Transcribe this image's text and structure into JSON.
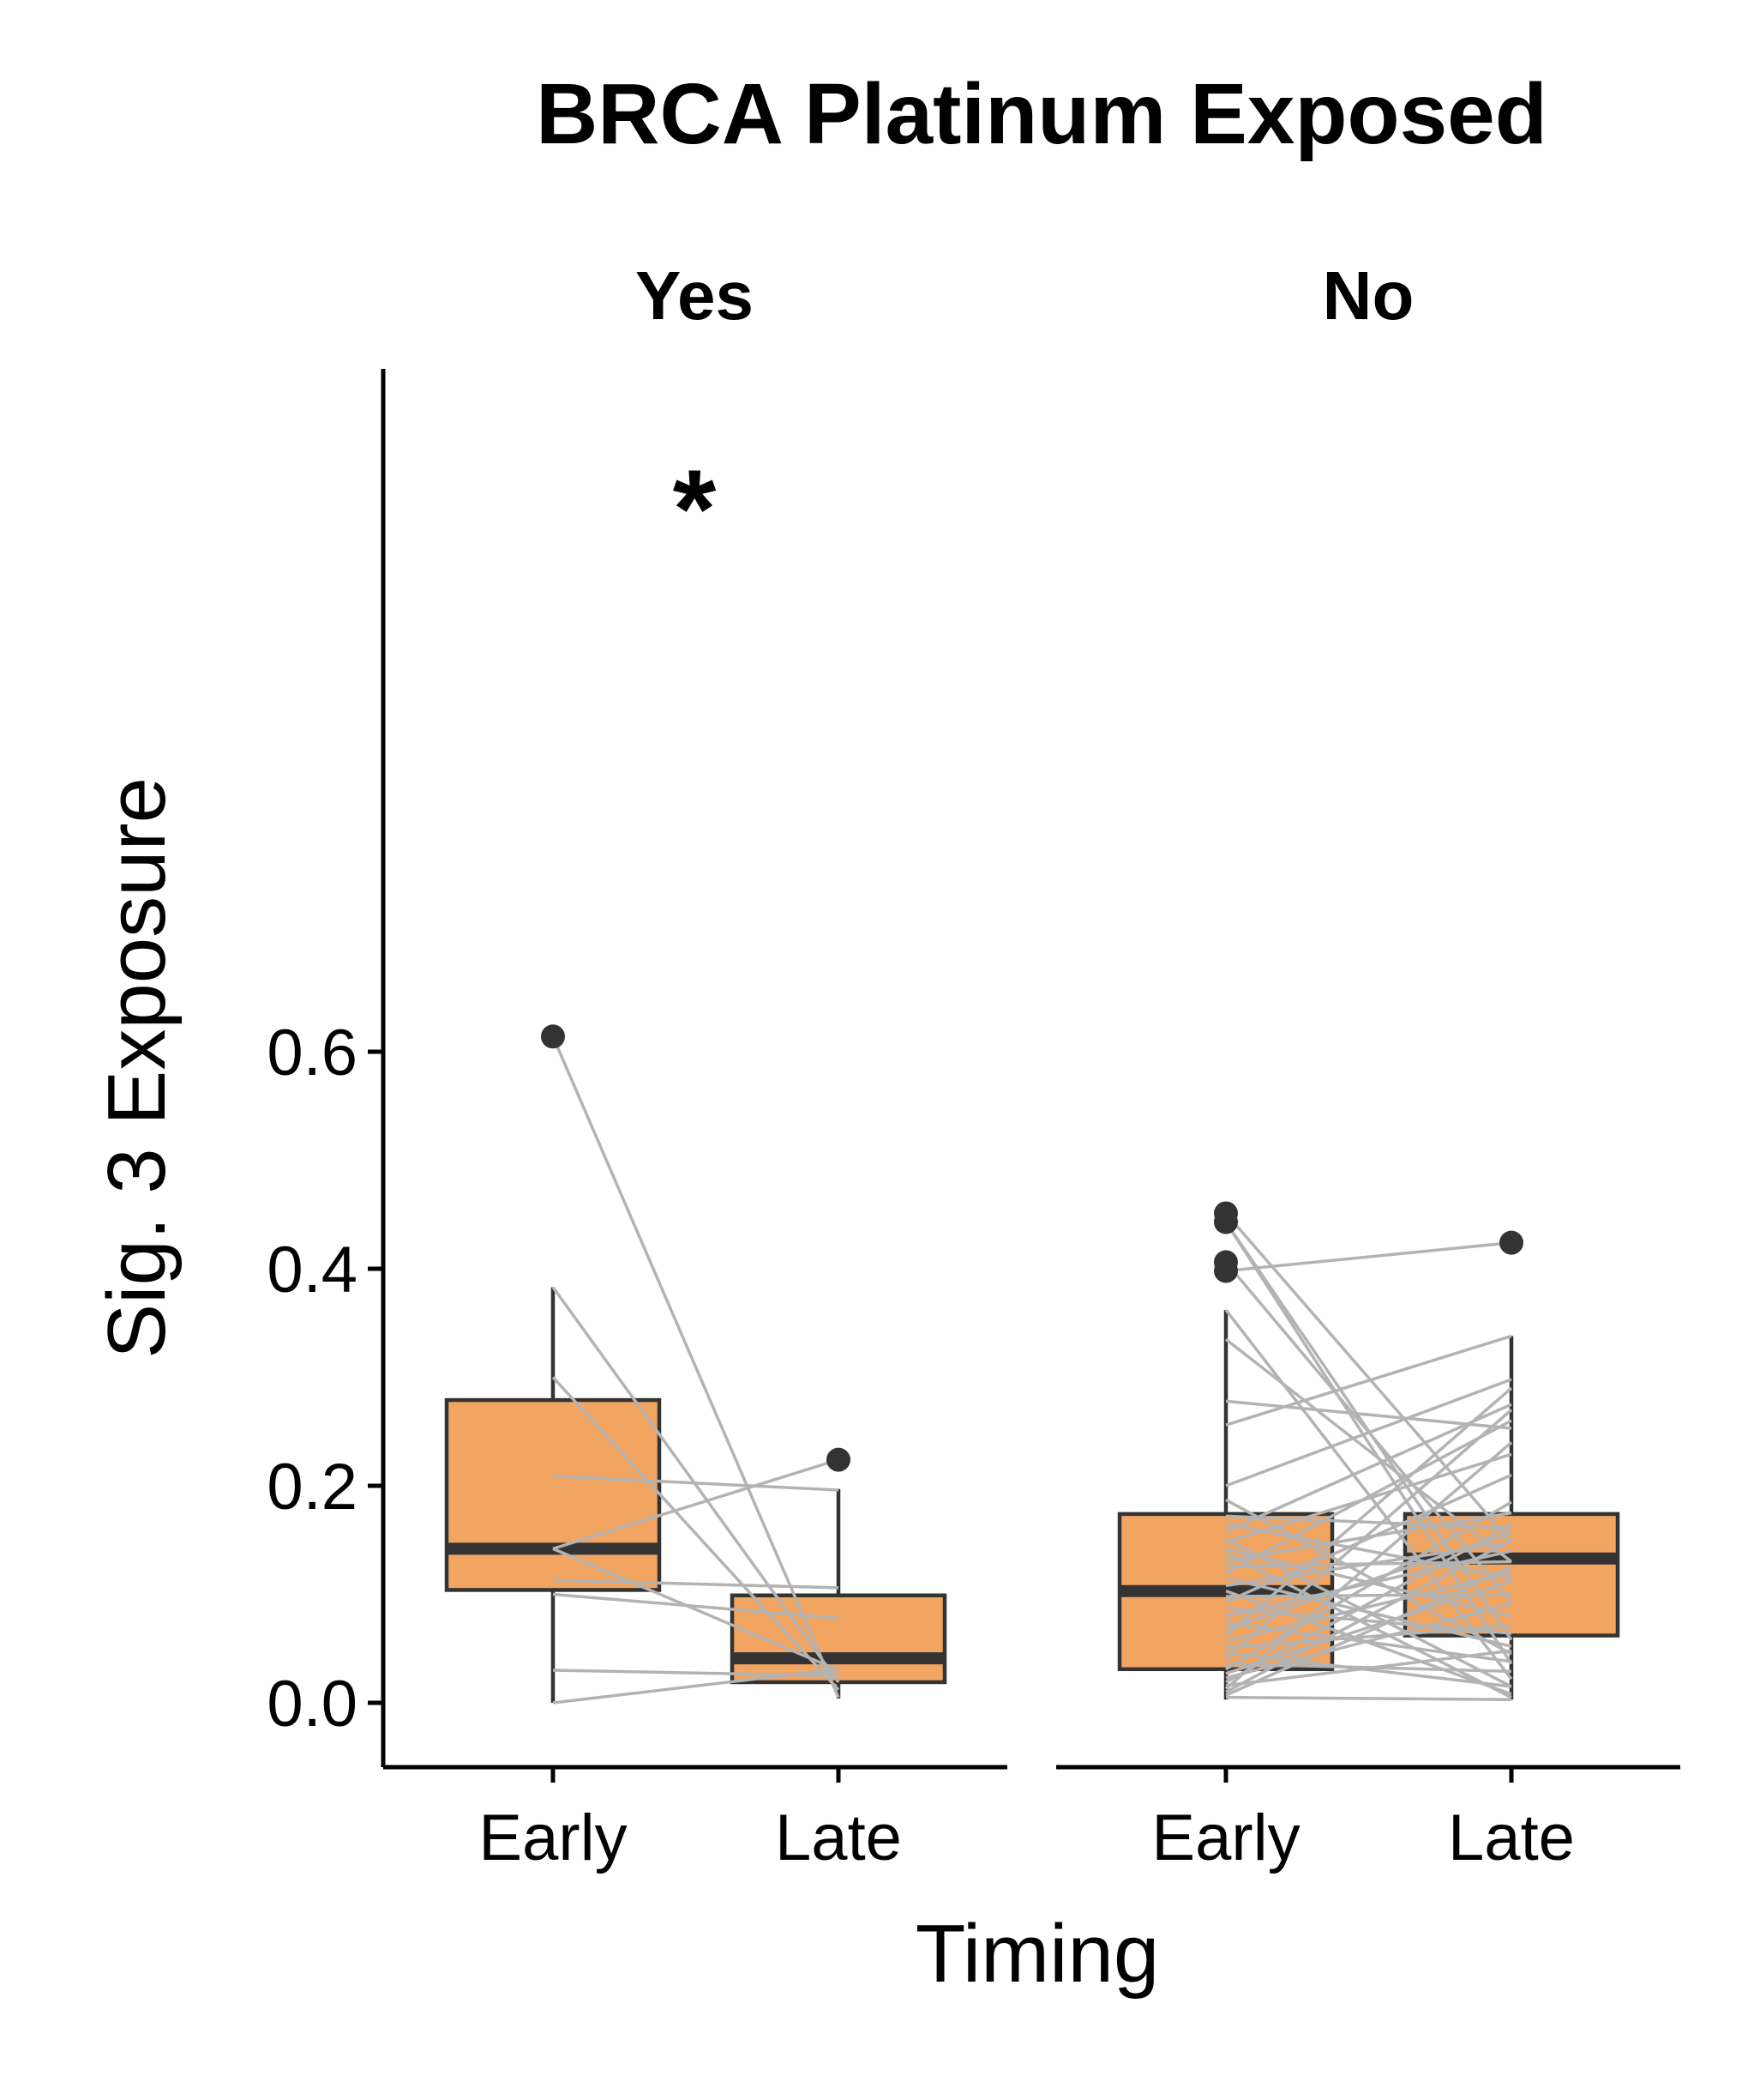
{
  "chart_data": {
    "type": "box",
    "title": "BRCA Platinum Exposed",
    "xlabel": "Timing",
    "ylabel": "Sig. 3 Exposure",
    "ylim": [
      -0.035,
      0.73
    ],
    "yticks": [
      0.0,
      0.2,
      0.4,
      0.6
    ],
    "ytick_labels": [
      "0.0",
      "0.2",
      "0.4",
      "0.6"
    ],
    "categories": [
      "Early",
      "Late"
    ],
    "fill_color": "#f2a561",
    "line_color": "#333333",
    "pair_line_color": "#b3b3b3",
    "panels": [
      {
        "label": "Yes",
        "annotation": "*",
        "boxes": [
          {
            "category": "Early",
            "min": 0.0,
            "q1": 0.104,
            "median": 0.142,
            "q3": 0.279,
            "max": 0.383,
            "outliers": [
              0.614
            ]
          },
          {
            "category": "Late",
            "min": 0.004,
            "q1": 0.019,
            "median": 0.041,
            "q3": 0.099,
            "max": 0.197,
            "outliers": [
              0.224
            ]
          }
        ],
        "pairs": [
          [
            0.614,
            0.005
          ],
          [
            0.383,
            0.019
          ],
          [
            0.3,
            0.012
          ],
          [
            0.209,
            0.196
          ],
          [
            0.142,
            0.224
          ],
          [
            0.142,
            0.03
          ],
          [
            0.113,
            0.106
          ],
          [
            0.1,
            0.078
          ],
          [
            0.03,
            0.025
          ],
          [
            0.0,
            0.031
          ]
        ]
      },
      {
        "label": "No",
        "annotation": "",
        "boxes": [
          {
            "category": "Early",
            "min": 0.003,
            "q1": 0.031,
            "median": 0.103,
            "q3": 0.174,
            "max": 0.362,
            "outliers": [
              0.451,
              0.443,
              0.406,
              0.398
            ]
          },
          {
            "category": "Late",
            "min": 0.003,
            "q1": 0.062,
            "median": 0.133,
            "q3": 0.174,
            "max": 0.338,
            "outliers": [
              0.424
            ]
          }
        ],
        "pairs": [
          [
            0.451,
            0.148
          ],
          [
            0.443,
            0.058
          ],
          [
            0.443,
            0.036
          ],
          [
            0.406,
            0.093
          ],
          [
            0.398,
            0.424
          ],
          [
            0.362,
            0.022
          ],
          [
            0.335,
            0.13
          ],
          [
            0.278,
            0.253
          ],
          [
            0.256,
            0.338
          ],
          [
            0.2,
            0.298
          ],
          [
            0.187,
            0.045
          ],
          [
            0.172,
            0.161
          ],
          [
            0.165,
            0.115
          ],
          [
            0.158,
            0.275
          ],
          [
            0.151,
            0.015
          ],
          [
            0.148,
            0.229
          ],
          [
            0.142,
            0.08
          ],
          [
            0.138,
            0.005
          ],
          [
            0.131,
            0.175
          ],
          [
            0.126,
            0.13
          ],
          [
            0.12,
            0.26
          ],
          [
            0.115,
            0.052
          ],
          [
            0.108,
            0.148
          ],
          [
            0.103,
            0.008
          ],
          [
            0.098,
            0.1
          ],
          [
            0.093,
            0.21
          ],
          [
            0.087,
            0.064
          ],
          [
            0.08,
            0.14
          ],
          [
            0.074,
            0.038
          ],
          [
            0.068,
            0.157
          ],
          [
            0.062,
            0.29
          ],
          [
            0.057,
            0.12
          ],
          [
            0.051,
            0.071
          ],
          [
            0.046,
            0.015
          ],
          [
            0.041,
            0.27
          ],
          [
            0.036,
            0.029
          ],
          [
            0.031,
            0.185
          ],
          [
            0.027,
            0.112
          ],
          [
            0.023,
            0.091
          ],
          [
            0.019,
            0.164
          ],
          [
            0.016,
            0.048
          ],
          [
            0.013,
            0.24
          ],
          [
            0.01,
            0.15
          ],
          [
            0.007,
            0.125
          ],
          [
            0.005,
            0.003
          ]
        ]
      }
    ]
  }
}
